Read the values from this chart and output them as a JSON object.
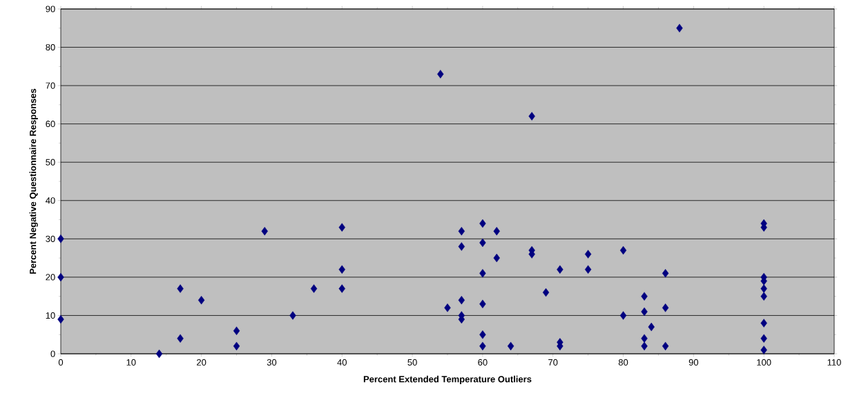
{
  "chart_data": {
    "type": "scatter",
    "xlabel": "Percent Extended Temperature Outliers",
    "ylabel": "Percent Negative Questionnaire Responses",
    "x": [
      0,
      0,
      0,
      14,
      17,
      17,
      20,
      25,
      25,
      29,
      33,
      36,
      40,
      40,
      40,
      54,
      55,
      57,
      57,
      57,
      57,
      57,
      60,
      60,
      60,
      60,
      60,
      60,
      62,
      62,
      64,
      67,
      67,
      67,
      69,
      71,
      71,
      71,
      75,
      75,
      80,
      80,
      83,
      83,
      83,
      83,
      84,
      86,
      86,
      86,
      88,
      100,
      100,
      100,
      100,
      100,
      100,
      100,
      100,
      100
    ],
    "values": [
      30,
      20,
      9,
      0,
      17,
      4,
      14,
      6,
      2,
      32,
      10,
      17,
      33,
      22,
      17,
      73,
      12,
      32,
      28,
      14,
      10,
      9,
      34,
      29,
      21,
      13,
      5,
      2,
      32,
      25,
      2,
      62,
      27,
      26,
      16,
      22,
      3,
      2,
      26,
      22,
      27,
      10,
      15,
      11,
      4,
      2,
      7,
      21,
      12,
      2,
      85,
      34,
      33,
      20,
      19,
      17,
      15,
      8,
      4,
      1
    ],
    "color": "#000080",
    "marker": "diamond",
    "grid": "y",
    "xlim": [
      0,
      110
    ],
    "ylim": [
      0,
      90
    ],
    "xticks": [
      0,
      10,
      20,
      30,
      40,
      50,
      60,
      70,
      80,
      90,
      100,
      110
    ],
    "yticks": [
      0,
      10,
      20,
      30,
      40,
      50,
      60,
      70,
      80,
      90
    ]
  }
}
